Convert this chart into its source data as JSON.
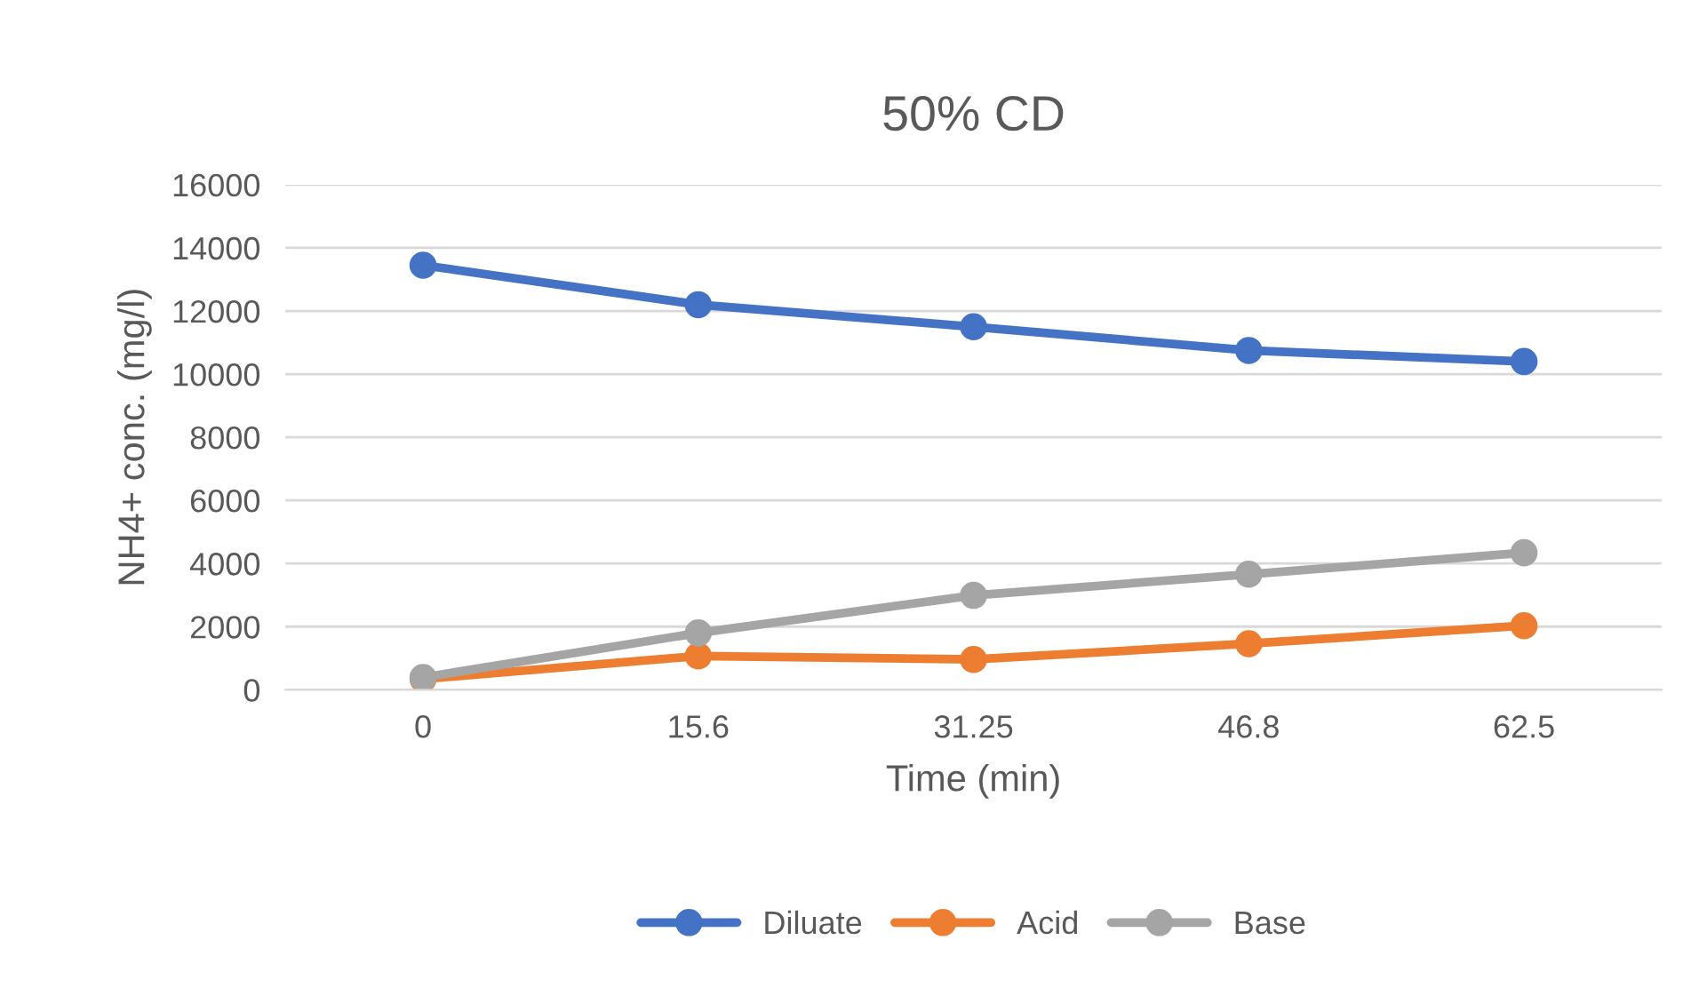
{
  "chart_data": {
    "type": "line",
    "title": "50% CD",
    "xlabel": "Time (min)",
    "ylabel": "NH4+ conc. (mg/l)",
    "categories": [
      "0",
      "15.6",
      "31.25",
      "46.8",
      "62.5"
    ],
    "series": [
      {
        "name": "Diluate",
        "color": "#4472c4",
        "values": [
          13450,
          12200,
          11500,
          10750,
          10400
        ]
      },
      {
        "name": "Acid",
        "color": "#ed7d31",
        "values": [
          340,
          1070,
          960,
          1460,
          2030
        ]
      },
      {
        "name": "Base",
        "color": "#a5a5a5",
        "values": [
          390,
          1800,
          2990,
          3660,
          4340
        ]
      }
    ],
    "ylim": [
      0,
      16000
    ],
    "yticks": [
      0,
      2000,
      4000,
      6000,
      8000,
      10000,
      12000,
      14000,
      16000
    ],
    "grid": "y",
    "legend": "bottom",
    "marker": "circle",
    "line_style": "solid"
  }
}
